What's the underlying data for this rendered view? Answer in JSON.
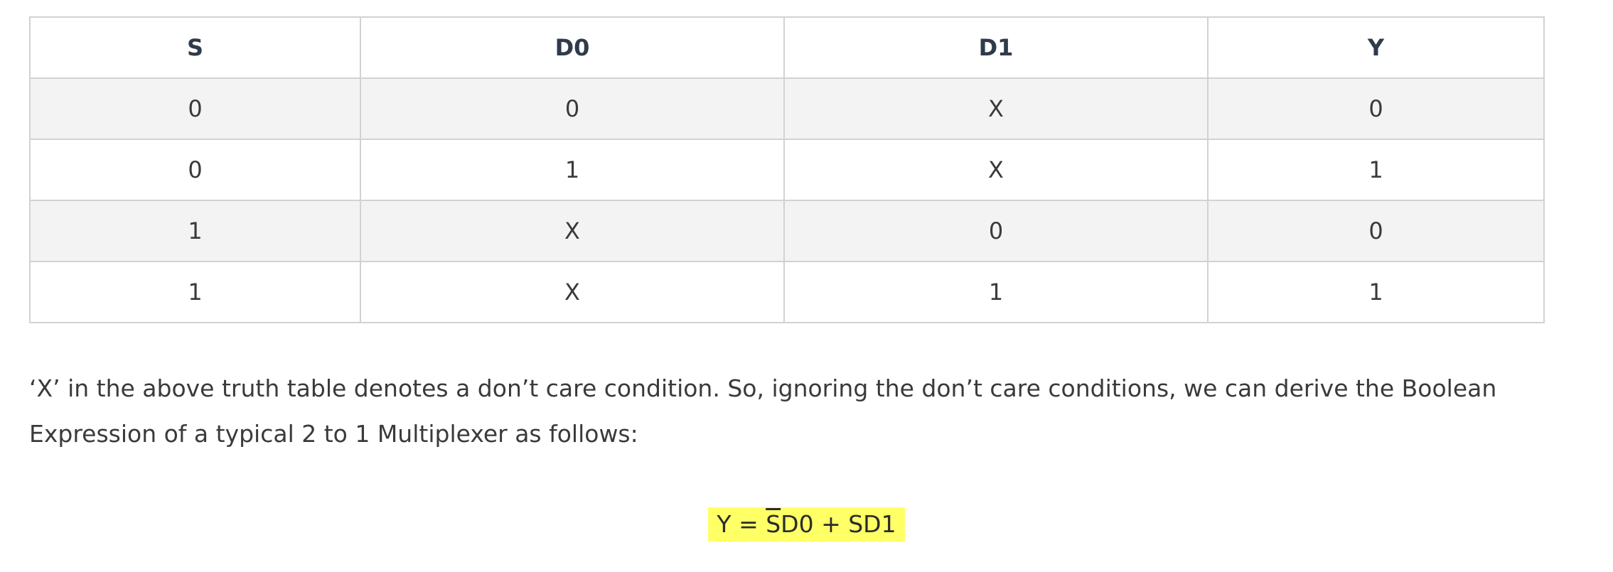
{
  "table": {
    "headers": [
      "S",
      "D0",
      "D1",
      "Y"
    ],
    "rows": [
      [
        "0",
        "0",
        "X",
        "0"
      ],
      [
        "0",
        "1",
        "X",
        "1"
      ],
      [
        "1",
        "X",
        "0",
        "0"
      ],
      [
        "1",
        "X",
        "1",
        "1"
      ]
    ]
  },
  "paragraph": {
    "text": "‘X’ in the above truth table denotes a don’t care condition. So, ignoring the don’t care conditions, we can derive the Boolean Expression of a typical 2 to 1 Multiplexer as follows:"
  },
  "expression": {
    "prefix": "Y = ",
    "negated_term": "S",
    "middle": "D0 + SD1"
  },
  "colors": {
    "highlight": "#ffff66",
    "border": "#d2d2d2",
    "stripe": "#f3f3f3"
  }
}
